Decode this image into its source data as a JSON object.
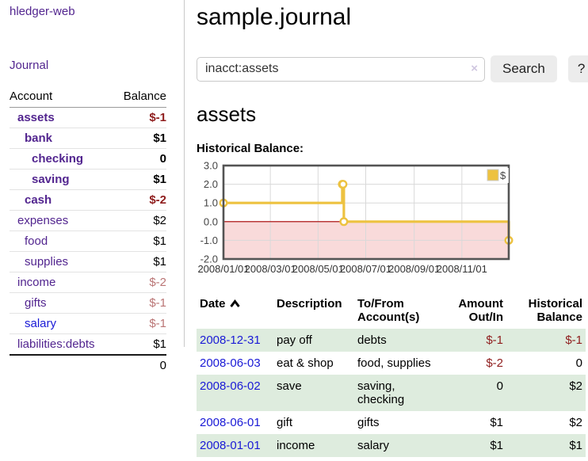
{
  "app": {
    "title": "hledger-web"
  },
  "sidebar": {
    "journal_link": "Journal",
    "headers": {
      "account": "Account",
      "balance": "Balance"
    },
    "accounts": [
      {
        "name": "assets",
        "balance": "$-1"
      },
      {
        "name": "bank",
        "balance": "$1"
      },
      {
        "name": "checking",
        "balance": "0"
      },
      {
        "name": "saving",
        "balance": "$1"
      },
      {
        "name": "cash",
        "balance": "$-2"
      },
      {
        "name": "expenses",
        "balance": "$2"
      },
      {
        "name": "food",
        "balance": "$1"
      },
      {
        "name": "supplies",
        "balance": "$1"
      },
      {
        "name": "income",
        "balance": "$-2"
      },
      {
        "name": "gifts",
        "balance": "$-1"
      },
      {
        "name": "salary",
        "balance": "$-1"
      },
      {
        "name": "liabilities:debts",
        "balance": "$1"
      }
    ],
    "total": "0"
  },
  "main": {
    "title": "sample.journal",
    "search": {
      "value": "inacct:assets",
      "clear_icon": "×",
      "button": "Search",
      "help_button": "?"
    },
    "account_heading": "assets",
    "chart_label": "Historical Balance:"
  },
  "chart_data": {
    "type": "line",
    "title": "Historical Balance:",
    "series": [
      {
        "name": "$",
        "color": "#edc240",
        "step": true,
        "points": [
          [
            "2008-01-01",
            1
          ],
          [
            "2008-06-01",
            2
          ],
          [
            "2008-06-02",
            2
          ],
          [
            "2008-06-03",
            0
          ],
          [
            "2008-12-31",
            -1
          ]
        ]
      }
    ],
    "x_domain": [
      "2008-01-01",
      "2008-12-31"
    ],
    "x_ticks": [
      {
        "date": "2008-01-01",
        "label": "2008/01/01"
      },
      {
        "date": "2008-03-01",
        "label": "2008/03/01"
      },
      {
        "date": "2008-05-01",
        "label": "2008/05/01"
      },
      {
        "date": "2008-07-01",
        "label": "2008/07/01"
      },
      {
        "date": "2008-09-01",
        "label": "2008/09/01"
      },
      {
        "date": "2008-11-01",
        "label": "2008/11/01"
      }
    ],
    "y_ticks": [
      "3.0",
      "2.0",
      "1.0",
      "0.0",
      "-1.0",
      "-2.0"
    ],
    "ylim": [
      -2,
      3
    ],
    "grid": true,
    "legend_position": "top-right",
    "legend_label": "$",
    "colors": {
      "negative_region_fill": "#f9dada",
      "zero_line": "#aa0000",
      "border": "#545454",
      "gridline": "#d9d9d9"
    }
  },
  "register": {
    "headers": {
      "date": "Date",
      "description": "Description",
      "accounts": "To/From Account(s)",
      "amount": "Amount Out/In",
      "balance": "Historical Balance"
    },
    "rows": [
      {
        "date": "2008-12-31",
        "description": "pay off",
        "accounts": "debts",
        "amount": "$-1",
        "balance": "$-1"
      },
      {
        "date": "2008-06-03",
        "description": "eat & shop",
        "accounts": "food, supplies",
        "amount": "$-2",
        "balance": "0"
      },
      {
        "date": "2008-06-02",
        "description": "save",
        "accounts": "saving, checking",
        "amount": "0",
        "balance": "$2"
      },
      {
        "date": "2008-06-01",
        "description": "gift",
        "accounts": "gifts",
        "amount": "$1",
        "balance": "$2"
      },
      {
        "date": "2008-01-01",
        "description": "income",
        "accounts": "salary",
        "amount": "$1",
        "balance": "$1"
      }
    ]
  }
}
